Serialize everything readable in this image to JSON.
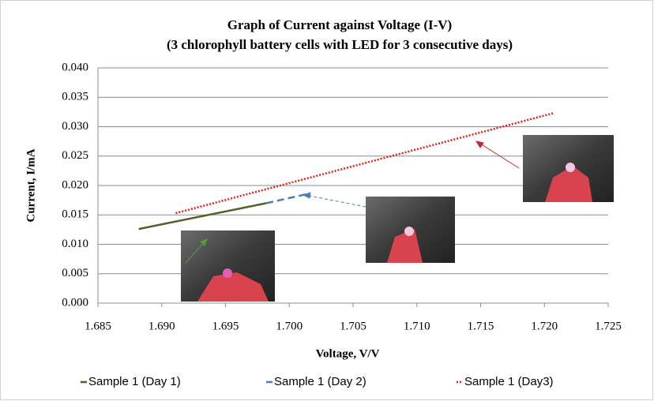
{
  "chart_data": {
    "type": "line",
    "title": "Graph of Current against Voltage (I-V)",
    "subtitle": "(3 chlorophyll battery cells with LED for 3 consecutive days)",
    "x_label": "Voltage, V/V",
    "y_label": "Current, I/mA",
    "series": [
      {
        "name": "Sample 1 (Day 1)",
        "color": "#4f6228",
        "style": "solid",
        "x": [
          1.6882,
          1.6982
        ],
        "values": [
          0.0126,
          0.017
        ]
      },
      {
        "name": "Sample 1 (Day 2)",
        "color": "#4a7ebb",
        "style": "dashed",
        "x": [
          1.6982,
          1.7013
        ],
        "values": [
          0.017,
          0.0185
        ]
      },
      {
        "name": "Sample 1 (Day3)",
        "color": "#e0201b",
        "style": "dotted",
        "x": [
          1.6911,
          1.7207
        ],
        "values": [
          0.0153,
          0.0323
        ]
      }
    ],
    "xlim": [
      1.685,
      1.725
    ],
    "xticks": [
      1.685,
      {
        "value": 1.69,
        "label": "1.690"
      },
      1.695,
      {
        "value": 1.7,
        "label": "1.700"
      },
      1.705,
      {
        "value": 1.71,
        "label": "1.710"
      },
      1.715,
      {
        "value": 1.72,
        "label": "1.720"
      },
      1.725
    ],
    "ylim": [
      0,
      0.04
    ],
    "yticks": [
      {
        "value": 0,
        "label": "0.000"
      },
      0.005,
      {
        "value": 0.01,
        "label": "0.010"
      },
      0.015,
      {
        "value": 0.02,
        "label": "0.020"
      },
      0.025,
      {
        "value": 0.03,
        "label": "0.030"
      },
      0.035,
      {
        "value": 0.04,
        "label": "0.040"
      }
    ],
    "grid": true,
    "legend": "bottom"
  }
}
